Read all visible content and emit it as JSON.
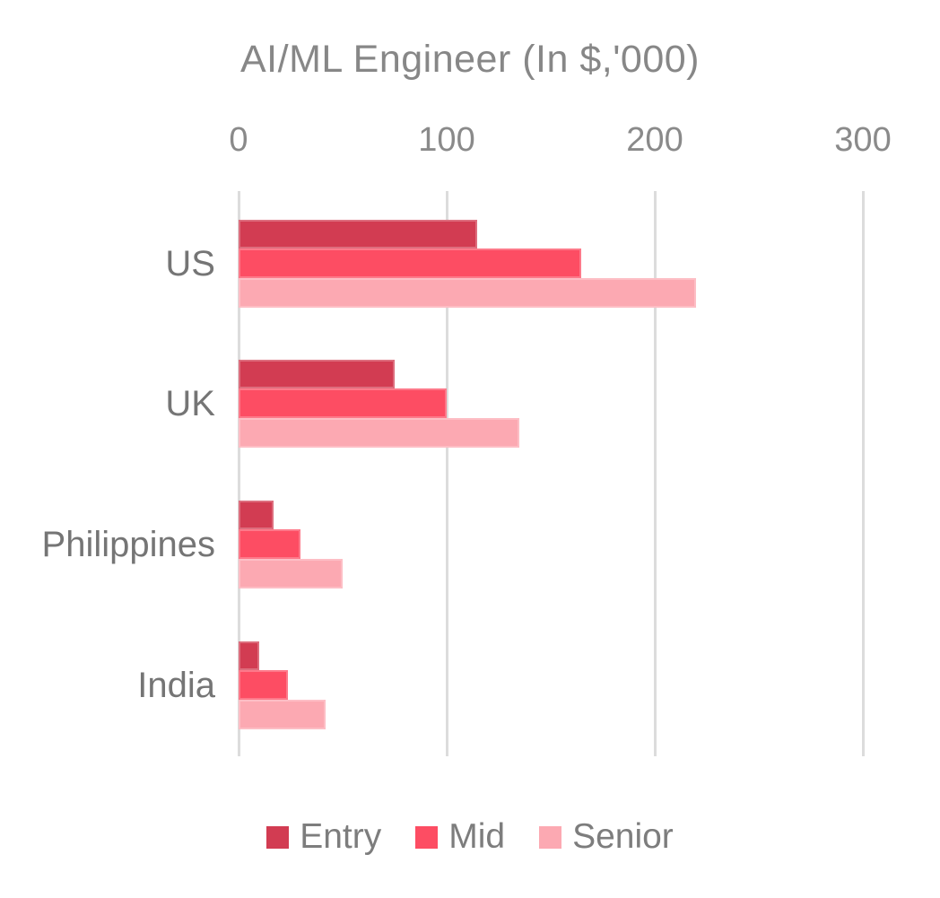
{
  "chart": {
    "title": "AI/ML Engineer (In $,'000)"
  },
  "chart_data": {
    "type": "bar",
    "orientation": "horizontal",
    "title": "AI/ML Engineer (In $,'000)",
    "categories": [
      "US",
      "UK",
      "Philippines",
      "India"
    ],
    "series": [
      {
        "name": "Entry",
        "color": "#d23c52",
        "values": [
          115,
          75,
          17,
          10
        ]
      },
      {
        "name": "Mid",
        "color": "#fd4d63",
        "values": [
          165,
          100,
          30,
          24
        ]
      },
      {
        "name": "Senior",
        "color": "#fca9b2",
        "values": [
          220,
          135,
          50,
          42
        ]
      }
    ],
    "xticks": [
      0,
      100,
      200,
      300
    ],
    "xlim": [
      0,
      322
    ],
    "grid": "vertical",
    "legend_position": "bottom",
    "colors": {
      "title_text": "#878787",
      "tick_text": "#8a8a8a",
      "category_text": "#757575",
      "legend_text": "#7d7d7d",
      "gridline": "#dcdcdc",
      "background": "#ffffff"
    }
  }
}
